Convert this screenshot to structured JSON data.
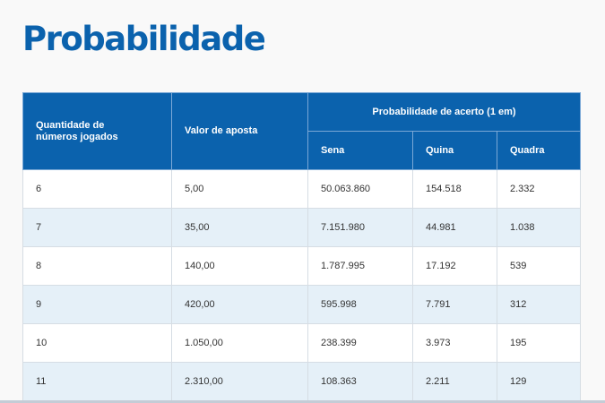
{
  "title": "Probabilidade",
  "table": {
    "headers": {
      "quantidade": "Quantidade de números jogados",
      "valor": "Valor de aposta",
      "probabilidade": "Probabilidade de acerto (1 em)",
      "sena": "Sena",
      "quina": "Quina",
      "quadra": "Quadra"
    },
    "rows": [
      [
        "6",
        "5,00",
        "50.063.860",
        "154.518",
        "2.332"
      ],
      [
        "7",
        "35,00",
        "7.151.980",
        "44.981",
        "1.038"
      ],
      [
        "8",
        "140,00",
        "1.787.995",
        "17.192",
        "539"
      ],
      [
        "9",
        "420,00",
        "595.998",
        "7.791",
        "312"
      ],
      [
        "10",
        "1.050,00",
        "238.399",
        "3.973",
        "195"
      ],
      [
        "11",
        "2.310,00",
        "108.363",
        "2.211",
        "129"
      ]
    ]
  }
}
